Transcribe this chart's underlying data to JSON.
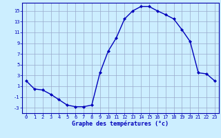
{
  "x": [
    0,
    1,
    2,
    3,
    4,
    5,
    6,
    7,
    8,
    9,
    10,
    11,
    12,
    13,
    14,
    15,
    16,
    17,
    18,
    19,
    20,
    21,
    22,
    23
  ],
  "y": [
    2,
    0.5,
    0.3,
    -0.5,
    -1.5,
    -2.5,
    -2.8,
    -2.8,
    -2.5,
    3.5,
    7.5,
    10.0,
    13.5,
    15.0,
    15.8,
    15.8,
    15.0,
    14.3,
    13.5,
    11.5,
    9.3,
    3.5,
    3.3,
    2.0
  ],
  "xlabel": "Graphe des températures (°c)",
  "yticks": [
    -3,
    -1,
    1,
    3,
    5,
    7,
    9,
    11,
    13,
    15
  ],
  "xticks": [
    0,
    1,
    2,
    3,
    4,
    5,
    6,
    7,
    8,
    9,
    10,
    11,
    12,
    13,
    14,
    15,
    16,
    17,
    18,
    19,
    20,
    21,
    22,
    23
  ],
  "ylim": [
    -4.0,
    16.5
  ],
  "xlim": [
    -0.5,
    23.5
  ],
  "line_color": "#0000bb",
  "marker": "D",
  "marker_size": 2.2,
  "bg_color": "#cceeff",
  "grid_color": "#99aacc",
  "axes_color": "#0000aa",
  "label_color": "#0000bb",
  "tick_color": "#0000bb",
  "tick_fontsize": 5.0,
  "xlabel_fontsize": 6.0
}
